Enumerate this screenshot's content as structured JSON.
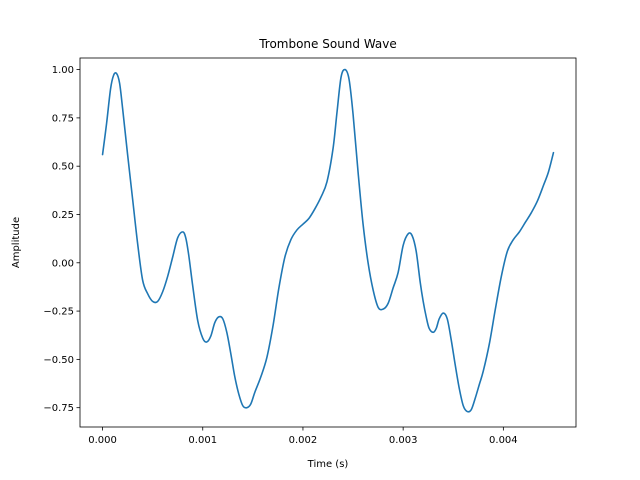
{
  "chart_data": {
    "type": "line",
    "title": "Trombone Sound Wave",
    "xlabel": "Time (s)",
    "ylabel": "Amplitude",
    "xlim": [
      -0.000225,
      0.004725
    ],
    "ylim": [
      -0.85,
      1.06
    ],
    "grid": false,
    "x_ticks": [
      0.0,
      0.001,
      0.002,
      0.003,
      0.004
    ],
    "x_tick_labels": [
      "0.000",
      "0.001",
      "0.002",
      "0.003",
      "0.004"
    ],
    "y_ticks": [
      -0.75,
      -0.5,
      -0.25,
      0.0,
      0.25,
      0.5,
      0.75,
      1.0
    ],
    "y_tick_labels": [
      "−0.75",
      "−0.50",
      "−0.25",
      "0.00",
      "0.25",
      "0.50",
      "0.75",
      "1.00"
    ],
    "series": [
      {
        "color": "#1f77b4",
        "x": [
          0.0,
          4e-05,
          8e-05,
          0.00011,
          0.00014,
          0.00017,
          0.0002,
          0.00025,
          0.0003,
          0.00035,
          0.0004,
          0.00045,
          0.0005,
          0.00055,
          0.0006,
          0.00065,
          0.0007,
          0.00075,
          0.0008,
          0.00083,
          0.00086,
          0.0009,
          0.00095,
          0.001,
          0.00104,
          0.00108,
          0.00112,
          0.00116,
          0.0012,
          0.00124,
          0.00128,
          0.00132,
          0.00136,
          0.0014,
          0.00144,
          0.00148,
          0.00152,
          0.00158,
          0.00164,
          0.0017,
          0.00176,
          0.00182,
          0.00188,
          0.00194,
          0.002,
          0.00206,
          0.00212,
          0.00218,
          0.00224,
          0.0023,
          0.00234,
          0.00238,
          0.00242,
          0.00246,
          0.0025,
          0.00255,
          0.0026,
          0.00265,
          0.0027,
          0.00275,
          0.0028,
          0.00285,
          0.0029,
          0.00295,
          0.003,
          0.00305,
          0.00309,
          0.00313,
          0.00317,
          0.0032,
          0.00323,
          0.00326,
          0.0033,
          0.00333,
          0.00336,
          0.0034,
          0.00344,
          0.00348,
          0.00352,
          0.00356,
          0.0036,
          0.00364,
          0.00368,
          0.00372,
          0.00376,
          0.0038,
          0.00386,
          0.00392,
          0.00398,
          0.00404,
          0.0041,
          0.00416,
          0.00422,
          0.00428,
          0.00434,
          0.0044,
          0.00445,
          0.0045
        ],
        "values": [
          0.56,
          0.72,
          0.9,
          0.97,
          0.98,
          0.93,
          0.8,
          0.56,
          0.33,
          0.1,
          -0.09,
          -0.16,
          -0.2,
          -0.2,
          -0.15,
          -0.07,
          0.03,
          0.13,
          0.16,
          0.13,
          0.04,
          -0.12,
          -0.3,
          -0.39,
          -0.41,
          -0.38,
          -0.31,
          -0.28,
          -0.29,
          -0.36,
          -0.47,
          -0.59,
          -0.68,
          -0.74,
          -0.75,
          -0.73,
          -0.67,
          -0.59,
          -0.49,
          -0.33,
          -0.13,
          0.03,
          0.12,
          0.17,
          0.2,
          0.23,
          0.28,
          0.34,
          0.42,
          0.59,
          0.78,
          0.96,
          1.0,
          0.95,
          0.77,
          0.47,
          0.2,
          -0.0,
          -0.14,
          -0.23,
          -0.24,
          -0.21,
          -0.13,
          -0.05,
          0.09,
          0.15,
          0.14,
          0.06,
          -0.1,
          -0.2,
          -0.28,
          -0.34,
          -0.36,
          -0.34,
          -0.29,
          -0.26,
          -0.29,
          -0.4,
          -0.53,
          -0.65,
          -0.74,
          -0.77,
          -0.76,
          -0.7,
          -0.63,
          -0.56,
          -0.42,
          -0.24,
          -0.07,
          0.06,
          0.12,
          0.16,
          0.21,
          0.26,
          0.32,
          0.4,
          0.47,
          0.57
        ]
      }
    ]
  }
}
